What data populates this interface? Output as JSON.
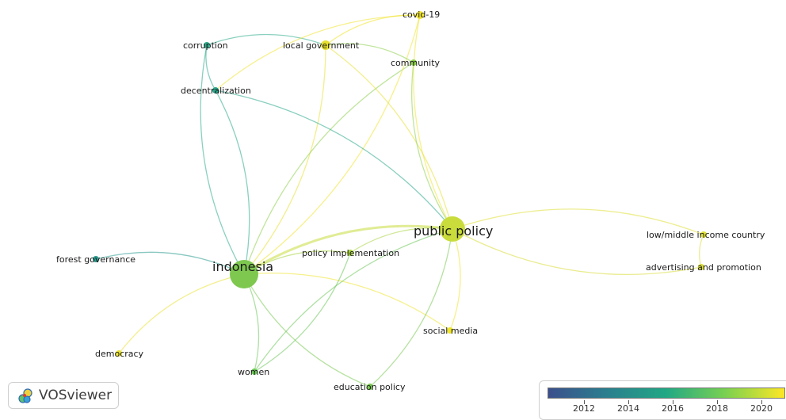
{
  "nodes": [
    {
      "id": "indonesia",
      "label": "indonesia",
      "size": "large",
      "color": "#7ec850"
    },
    {
      "id": "public_policy",
      "label": "public policy",
      "size": "large",
      "color": "#c9dc3c"
    },
    {
      "id": "covid19",
      "label": "covid-19",
      "size": "small",
      "color": "#f0e42e"
    },
    {
      "id": "local_government",
      "label": "local government",
      "size": "small",
      "color": "#e6e030"
    },
    {
      "id": "corruption",
      "label": "corruption",
      "size": "small",
      "color": "#2aaa8a"
    },
    {
      "id": "community",
      "label": "community",
      "size": "small",
      "color": "#8cd04a"
    },
    {
      "id": "decentralization",
      "label": "decentralization",
      "size": "small",
      "color": "#28a88a"
    },
    {
      "id": "forest_governance",
      "label": "forest governance",
      "size": "small",
      "color": "#2a9a8e"
    },
    {
      "id": "policy_implementation",
      "label": "policy implementation",
      "size": "small",
      "color": "#a8d43e"
    },
    {
      "id": "low_middle",
      "label": "low/middle income country",
      "size": "small",
      "color": "#dfe034"
    },
    {
      "id": "advertising",
      "label": "advertising and promotion",
      "size": "small",
      "color": "#d9dc36"
    },
    {
      "id": "social_media",
      "label": "social media",
      "size": "small",
      "color": "#efe42c"
    },
    {
      "id": "democracy",
      "label": "democracy",
      "size": "small",
      "color": "#e9e232"
    },
    {
      "id": "women",
      "label": "women",
      "size": "small",
      "color": "#6cc658"
    },
    {
      "id": "education_policy",
      "label": "education policy",
      "size": "small",
      "color": "#7ac852"
    }
  ],
  "edges": [
    [
      "indonesia",
      "public_policy"
    ],
    [
      "indonesia",
      "local_government"
    ],
    [
      "indonesia",
      "corruption"
    ],
    [
      "indonesia",
      "decentralization"
    ],
    [
      "indonesia",
      "community"
    ],
    [
      "indonesia",
      "forest_governance"
    ],
    [
      "indonesia",
      "policy_implementation"
    ],
    [
      "indonesia",
      "democracy"
    ],
    [
      "indonesia",
      "women"
    ],
    [
      "indonesia",
      "education_policy"
    ],
    [
      "indonesia",
      "social_media"
    ],
    [
      "indonesia",
      "covid19"
    ],
    [
      "public_policy",
      "covid19"
    ],
    [
      "public_policy",
      "local_government"
    ],
    [
      "public_policy",
      "community"
    ],
    [
      "public_policy",
      "decentralization"
    ],
    [
      "public_policy",
      "low_middle"
    ],
    [
      "public_policy",
      "advertising"
    ],
    [
      "public_policy",
      "social_media"
    ],
    [
      "public_policy",
      "policy_implementation"
    ],
    [
      "public_policy",
      "education_policy"
    ],
    [
      "public_policy",
      "women"
    ],
    [
      "local_government",
      "covid19"
    ],
    [
      "local_government",
      "corruption"
    ],
    [
      "local_government",
      "community"
    ],
    [
      "corruption",
      "decentralization"
    ],
    [
      "decentralization",
      "covid19"
    ],
    [
      "low_middle",
      "advertising"
    ],
    [
      "policy_implementation",
      "women"
    ]
  ],
  "legend": {
    "ticks": [
      "2012",
      "2014",
      "2016",
      "2018",
      "2020"
    ],
    "gradient": [
      "#3b4f8c",
      "#2a7f8e",
      "#22a884",
      "#7ad151",
      "#fde725"
    ]
  },
  "brand": {
    "name": "VOSviewer"
  }
}
